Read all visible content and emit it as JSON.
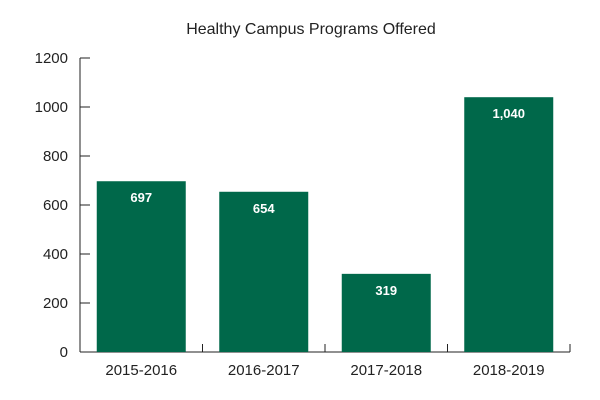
{
  "chart_data": {
    "type": "bar",
    "title": "Healthy Campus Programs Offered",
    "categories": [
      "2015-2016",
      "2016-2017",
      "2017-2018",
      "2018-2019"
    ],
    "values": [
      697,
      654,
      319,
      1040
    ],
    "data_labels": [
      "697",
      "654",
      "319",
      "1,040"
    ],
    "ylim": [
      0,
      1200
    ],
    "yticks": [
      0,
      200,
      400,
      600,
      800,
      1000,
      1200
    ],
    "ytick_labels": [
      "0",
      "200",
      "400",
      "600",
      "800",
      "1000",
      "1200"
    ],
    "xlabel": "",
    "ylabel": "",
    "grid": false,
    "legend": "none",
    "bar_color": "#00684A"
  }
}
